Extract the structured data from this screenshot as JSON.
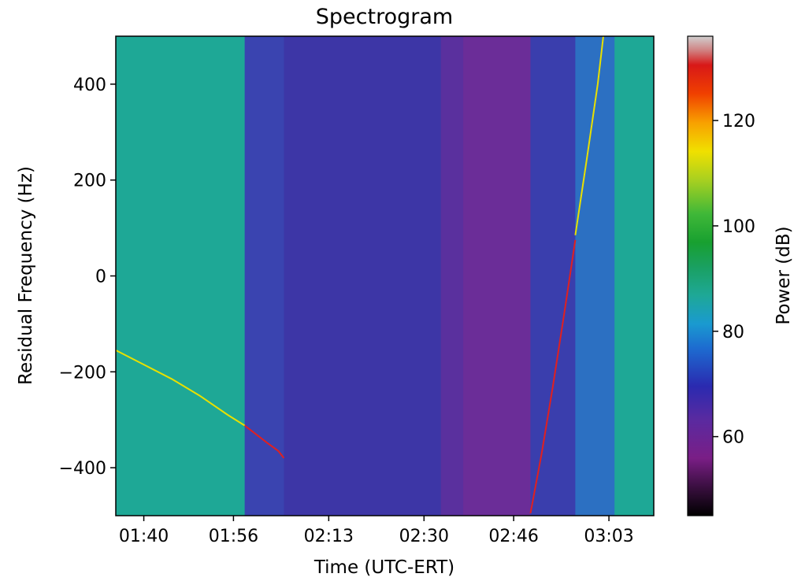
{
  "chart_data": {
    "type": "heatmap",
    "title": "Spectrogram",
    "xlabel": "Time (UTC-ERT)",
    "ylabel": "Residual Frequency (Hz)",
    "x_unit": "time of day (HH:MM)",
    "xlim": [
      "01:35",
      "03:11"
    ],
    "ylim": [
      -500,
      500
    ],
    "x_ticks": [
      {
        "value": "01:40",
        "label": "01:40"
      },
      {
        "value": "01:56",
        "label": "01:56"
      },
      {
        "value": "02:13",
        "label": "02:13"
      },
      {
        "value": "02:30",
        "label": "02:30"
      },
      {
        "value": "02:46",
        "label": "02:46"
      },
      {
        "value": "03:03",
        "label": "03:03"
      }
    ],
    "y_ticks": [
      {
        "value": 400,
        "label": "400"
      },
      {
        "value": 200,
        "label": "200"
      },
      {
        "value": 0,
        "label": "0"
      },
      {
        "value": -200,
        "label": "−200"
      },
      {
        "value": -400,
        "label": "−400"
      }
    ],
    "colorbar": {
      "label": "Power (dB)",
      "range": [
        45,
        136
      ],
      "ticks": [
        {
          "value": 60,
          "label": "60"
        },
        {
          "value": 80,
          "label": "80"
        },
        {
          "value": 100,
          "label": "100"
        },
        {
          "value": 120,
          "label": "120"
        }
      ],
      "colormap": "nipy_spectral"
    },
    "background_segments": [
      {
        "start": "01:35",
        "end": "01:58",
        "power_db": 79,
        "color": "#1ea896"
      },
      {
        "start": "01:58",
        "end": "02:05",
        "power_db": 64,
        "color": "#3a44b0"
      },
      {
        "start": "02:05",
        "end": "02:33",
        "power_db": 62,
        "color": "#3d36a6"
      },
      {
        "start": "02:33",
        "end": "02:37",
        "power_db": 58,
        "color": "#5a309e"
      },
      {
        "start": "02:37",
        "end": "02:49",
        "power_db": 56,
        "color": "#6b2d98"
      },
      {
        "start": "02:49",
        "end": "02:57",
        "power_db": 63,
        "color": "#3a3ead"
      },
      {
        "start": "02:57",
        "end": "03:04",
        "power_db": 70,
        "color": "#2c70c2"
      },
      {
        "start": "03:04",
        "end": "03:11",
        "power_db": 80,
        "color": "#1ea896"
      }
    ],
    "carrier_segments": [
      {
        "name": "carrier-1",
        "power_db": 110,
        "color": "#e8e000",
        "x": [
          "01:35",
          "01:40",
          "01:45",
          "01:50",
          "01:55",
          "01:58"
        ],
        "y": [
          -155,
          -185,
          -215,
          -250,
          -290,
          -312
        ]
      },
      {
        "name": "carrier-2",
        "power_db": 125,
        "color": "#e02020",
        "x": [
          "01:58",
          "02:00",
          "02:02",
          "02:04",
          "02:05"
        ],
        "y": [
          -312,
          -330,
          -348,
          -365,
          -380
        ]
      },
      {
        "name": "carrier-3",
        "power_db": 125,
        "color": "#e02020",
        "x": [
          "02:49",
          "02:51",
          "02:53",
          "02:55",
          "02:57"
        ],
        "y": [
          -495,
          -370,
          -230,
          -80,
          75
        ]
      },
      {
        "name": "carrier-4",
        "power_db": 110,
        "color": "#e8e000",
        "x": [
          "02:57",
          "02:59",
          "03:01",
          "03:02"
        ],
        "y": [
          85,
          240,
          400,
          500
        ]
      }
    ]
  }
}
